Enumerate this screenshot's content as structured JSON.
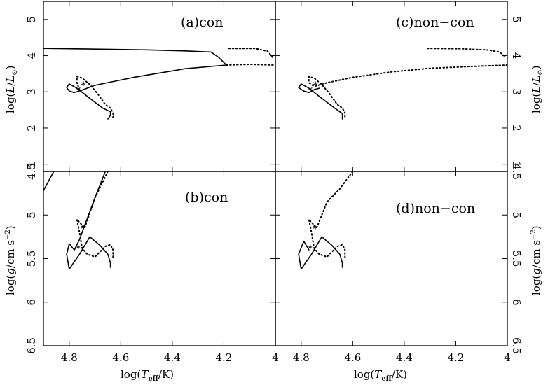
{
  "chart_data": [
    {
      "type": "line",
      "id": "a",
      "panel_label": "(a)con",
      "x_axis": "log_teff",
      "y_axis": "log_L",
      "series": [
        {
          "style": "solid",
          "x": [
            4.9,
            4.7,
            4.5,
            4.35,
            4.25,
            4.22,
            4.19
          ],
          "y": [
            4.2,
            4.18,
            4.16,
            4.13,
            4.1,
            3.95,
            3.74
          ]
        },
        {
          "style": "solid",
          "x": [
            4.19,
            4.35,
            4.55,
            4.7,
            4.75,
            4.78,
            4.8,
            4.81,
            4.8,
            4.77,
            4.72,
            4.67,
            4.64,
            4.64,
            4.65
          ],
          "y": [
            3.74,
            3.64,
            3.4,
            3.18,
            3.05,
            2.98,
            3.02,
            3.12,
            3.22,
            3.1,
            2.82,
            2.55,
            2.45,
            2.35,
            2.25
          ]
        },
        {
          "style": "dotted",
          "x": [
            4.76,
            4.77,
            4.77,
            4.75,
            4.72,
            4.69,
            4.66,
            4.64,
            4.63,
            4.63
          ],
          "y": [
            3.05,
            3.25,
            3.42,
            3.38,
            3.2,
            2.95,
            2.65,
            2.55,
            2.42,
            2.28
          ]
        },
        {
          "style": "dotted",
          "x": [
            4.18,
            4.08,
            4.03,
            4.01
          ],
          "y": [
            4.2,
            4.2,
            4.12,
            3.95
          ]
        },
        {
          "style": "dotted",
          "x": [
            4.19,
            4.1,
            4.0
          ],
          "y": [
            3.74,
            3.76,
            3.74
          ]
        }
      ],
      "markers": [
        {
          "x": 4.765,
          "y": 3.05
        },
        {
          "x": 4.745,
          "y": 3.2
        }
      ]
    },
    {
      "type": "line",
      "id": "b",
      "panel_label": "(b)con",
      "x_axis": "log_teff",
      "y_axis": "log_g",
      "series": [
        {
          "style": "solid",
          "x": [
            4.9,
            4.86
          ],
          "y": [
            4.72,
            4.5
          ]
        },
        {
          "style": "solid",
          "x": [
            4.66,
            4.7,
            4.74,
            4.76,
            4.78,
            4.8,
            4.81,
            4.8,
            4.76,
            4.72,
            4.68,
            4.65,
            4.64,
            4.64
          ],
          "y": [
            4.5,
            4.8,
            5.12,
            5.28,
            5.4,
            5.33,
            5.45,
            5.62,
            5.45,
            5.25,
            5.35,
            5.45,
            5.55,
            5.6
          ]
        },
        {
          "style": "dotted",
          "x": [
            4.65,
            4.7,
            4.74,
            4.77,
            4.76,
            4.75,
            4.73,
            4.7,
            4.66,
            4.64,
            4.63,
            4.63
          ],
          "y": [
            4.5,
            4.8,
            5.15,
            5.05,
            5.2,
            5.38,
            5.45,
            5.48,
            5.36,
            5.34,
            5.4,
            5.5
          ]
        }
      ],
      "markers": [
        {
          "x": 4.765,
          "y": 5.38
        },
        {
          "x": 4.745,
          "y": 5.15
        }
      ]
    },
    {
      "type": "line",
      "id": "c",
      "panel_label": "(c)non−con",
      "x_axis": "log_teff",
      "y_axis": "log_L",
      "series": [
        {
          "style": "solid",
          "x": [
            4.73,
            4.75,
            4.77,
            4.79,
            4.81,
            4.8,
            4.77,
            4.72,
            4.67,
            4.64,
            4.64
          ],
          "y": [
            3.1,
            3.06,
            2.98,
            3.02,
            3.12,
            3.22,
            3.1,
            2.82,
            2.55,
            2.4,
            2.25
          ]
        },
        {
          "style": "dotted",
          "x": [
            4.0,
            4.15,
            4.3,
            4.45,
            4.6,
            4.7,
            4.75,
            4.77,
            4.77,
            4.75,
            4.72,
            4.69,
            4.66,
            4.64,
            4.63,
            4.63
          ],
          "y": [
            3.74,
            3.7,
            3.65,
            3.55,
            3.4,
            3.25,
            3.15,
            3.25,
            3.42,
            3.38,
            3.2,
            2.95,
            2.65,
            2.55,
            2.42,
            2.28
          ]
        },
        {
          "style": "dotted",
          "x": [
            4.31,
            4.18,
            4.08,
            4.03,
            4.01
          ],
          "y": [
            4.2,
            4.19,
            4.16,
            4.1,
            3.98
          ]
        }
      ],
      "markers": [
        {
          "x": 4.765,
          "y": 3.05
        },
        {
          "x": 4.745,
          "y": 3.2
        }
      ]
    },
    {
      "type": "line",
      "id": "d",
      "panel_label": "(d)non−con",
      "x_axis": "log_teff",
      "y_axis": "log_g",
      "series": [
        {
          "style": "solid",
          "x": [
            4.77,
            4.79,
            4.81,
            4.8,
            4.76,
            4.72,
            4.68,
            4.65,
            4.64,
            4.64
          ],
          "y": [
            5.4,
            5.3,
            5.45,
            5.62,
            5.45,
            5.25,
            5.35,
            5.45,
            5.55,
            5.6
          ]
        },
        {
          "style": "dotted",
          "x": [
            4.6,
            4.65,
            4.7,
            4.74,
            4.77,
            4.76,
            4.75,
            4.73,
            4.7,
            4.66,
            4.64,
            4.63,
            4.63
          ],
          "y": [
            4.5,
            4.7,
            4.85,
            5.15,
            5.05,
            5.2,
            5.38,
            5.45,
            5.48,
            5.36,
            5.34,
            5.4,
            5.5
          ]
        }
      ],
      "markers": [
        {
          "x": 4.765,
          "y": 5.38
        },
        {
          "x": 4.745,
          "y": 5.15
        }
      ]
    }
  ],
  "axes": {
    "log_teff": {
      "title_prefix": "log(",
      "title_var": "T",
      "title_sub": "eff",
      "title_suffix": "/K)",
      "range": [
        4.9,
        4.0
      ],
      "ticks": [
        "4.8",
        "4.6",
        "4.4",
        "4.2",
        "4"
      ],
      "tick_values": [
        4.8,
        4.6,
        4.4,
        4.2,
        4.0
      ]
    },
    "log_L": {
      "title_prefix": "log(",
      "title_var": "L",
      "title_mid": "/",
      "title_var2": "L",
      "title_sub": "⊙",
      "title_suffix": ")",
      "range": [
        0.8,
        5.5
      ],
      "ticks": [
        "1",
        "2",
        "3",
        "4",
        "5"
      ],
      "tick_values": [
        1,
        2,
        3,
        4,
        5
      ]
    },
    "log_g": {
      "title_prefix": "log(",
      "title_var": "g",
      "title_suffix": "/cm s",
      "title_sup": "−2",
      "title_close": ")",
      "range": [
        6.5,
        4.5
      ],
      "ticks": [
        "4.5",
        "5",
        "5.5",
        "6",
        "6.5"
      ],
      "tick_values": [
        4.5,
        5,
        5.5,
        6,
        6.5
      ]
    }
  },
  "grid": false,
  "style": {
    "line_color": "#000000",
    "background": "#ffffff"
  }
}
